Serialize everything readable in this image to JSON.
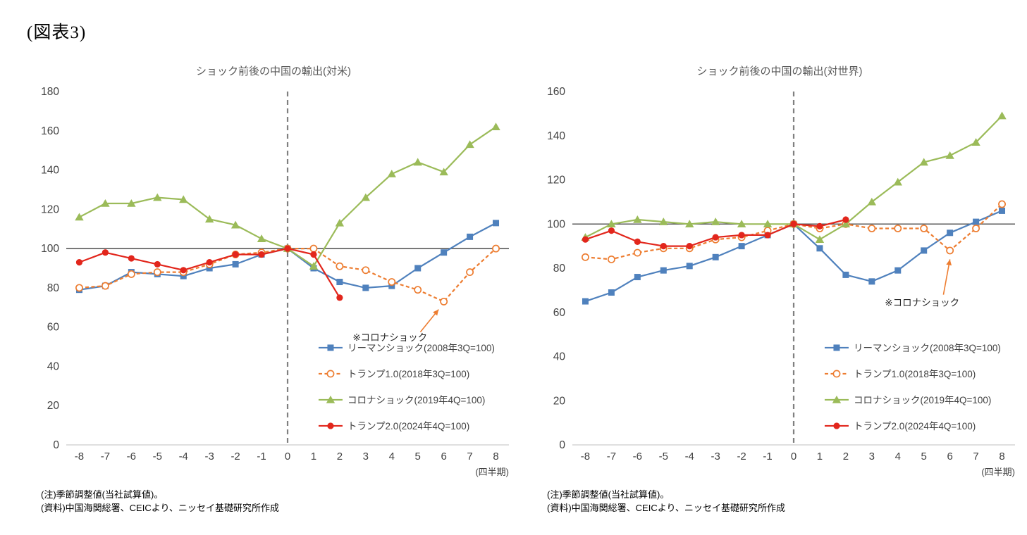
{
  "figure_label": "(図表3)",
  "notes": {
    "line1": "(注)季節調整値(当社試算値)。",
    "line2": "(資料)中国海関総署、CEICより、ニッセイ基礎研究所作成"
  },
  "chart_data": [
    {
      "type": "line",
      "title": "ショック前後の中国の輸出(対米)",
      "xlabel": "(四半期)",
      "x": [
        -8,
        -7,
        -6,
        -5,
        -4,
        -3,
        -2,
        -1,
        0,
        1,
        2,
        3,
        4,
        5,
        6,
        7,
        8
      ],
      "ylim": [
        0,
        180
      ],
      "ytick_step": 20,
      "baseline_y": 100,
      "event_line_x": 0,
      "grid": false,
      "legend_position": "inside-right-bottom",
      "annotation": {
        "text": "※コロナショック",
        "tx": 2.5,
        "ty": 53,
        "ax1": 5.1,
        "ay1": 57.5,
        "ax2": 5.8,
        "ay2": 69,
        "color": "#ed7d31"
      },
      "series": [
        {
          "name": "リーマンショック(2008年3Q=100)",
          "color": "#4f81bd",
          "marker": "square",
          "dashed": false,
          "values": [
            79,
            81,
            88,
            87,
            86,
            90,
            92,
            97,
            100,
            90,
            83,
            80,
            81,
            90,
            98,
            106,
            113
          ]
        },
        {
          "name": "トランプ1.0(2018年3Q=100)",
          "color": "#ed7d31",
          "marker": "open-circle",
          "dashed": true,
          "values": [
            80,
            81,
            87,
            88,
            88,
            92,
            97,
            98,
            100,
            100,
            91,
            89,
            83,
            79,
            73,
            88,
            100
          ]
        },
        {
          "name": "コロナショック(2019年4Q=100)",
          "color": "#9bbb59",
          "marker": "triangle",
          "dashed": false,
          "values": [
            116,
            123,
            123,
            126,
            125,
            115,
            112,
            105,
            100,
            91,
            113,
            126,
            138,
            144,
            139,
            153,
            162
          ]
        },
        {
          "name": "トランプ2.0(2024年4Q=100)",
          "color": "#e2261c",
          "marker": "circle",
          "dashed": false,
          "values": [
            93,
            98,
            95,
            92,
            89,
            93,
            97,
            97,
            100,
            97,
            75,
            null,
            null,
            null,
            null,
            null,
            null
          ]
        }
      ]
    },
    {
      "type": "line",
      "title": "ショック前後の中国の輸出(対世界)",
      "xlabel": "(四半期)",
      "x": [
        -8,
        -7,
        -6,
        -5,
        -4,
        -3,
        -2,
        -1,
        0,
        1,
        2,
        3,
        4,
        5,
        6,
        7,
        8
      ],
      "ylim": [
        0,
        160
      ],
      "ytick_step": 20,
      "baseline_y": 100,
      "event_line_x": 0,
      "grid": false,
      "legend_position": "inside-right-bottom",
      "annotation": {
        "text": "※コロナショック",
        "tx": 3.5,
        "ty": 63,
        "ax1": 5.75,
        "ay1": 68,
        "ax2": 6.0,
        "ay2": 84,
        "color": "#ed7d31"
      },
      "series": [
        {
          "name": "リーマンショック(2008年3Q=100)",
          "color": "#4f81bd",
          "marker": "square",
          "dashed": false,
          "values": [
            65,
            69,
            76,
            79,
            81,
            85,
            90,
            95,
            100,
            89,
            77,
            74,
            79,
            88,
            96,
            101,
            106
          ]
        },
        {
          "name": "トランプ1.0(2018年3Q=100)",
          "color": "#ed7d31",
          "marker": "open-circle",
          "dashed": true,
          "values": [
            85,
            84,
            87,
            89,
            89,
            93,
            94,
            97,
            100,
            98,
            100,
            98,
            98,
            98,
            88,
            98,
            109
          ]
        },
        {
          "name": "コロナショック(2019年4Q=100)",
          "color": "#9bbb59",
          "marker": "triangle",
          "dashed": false,
          "values": [
            94,
            100,
            102,
            101,
            100,
            101,
            100,
            100,
            100,
            93,
            100,
            110,
            119,
            128,
            131,
            137,
            149
          ]
        },
        {
          "name": "トランプ2.0(2024年4Q=100)",
          "color": "#e2261c",
          "marker": "circle",
          "dashed": false,
          "values": [
            93,
            97,
            92,
            90,
            90,
            94,
            95,
            95,
            100,
            99,
            102,
            null,
            null,
            null,
            null,
            null,
            null
          ]
        }
      ]
    }
  ]
}
